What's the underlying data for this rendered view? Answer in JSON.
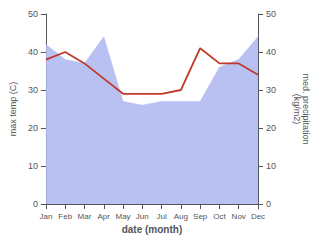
{
  "chart_data": {
    "type": "line",
    "xlabel": "date (month)",
    "ylabel": "max temp (C)",
    "y2label": "med. precipitation\n(kg/m2)",
    "categories": [
      "Jan",
      "Feb",
      "Mar",
      "Apr",
      "May",
      "Jun",
      "Jul",
      "Aug",
      "Sep",
      "Oct",
      "Nov",
      "Dec"
    ],
    "series": [
      {
        "type": "area",
        "axis": "y2",
        "color": "#b0baf0",
        "values": [
          42,
          38,
          37,
          44,
          27,
          26,
          27,
          27,
          27,
          36,
          38,
          44
        ]
      },
      {
        "type": "line",
        "color": "#c0392b",
        "values": [
          38,
          40,
          37,
          33,
          29,
          29,
          29,
          30,
          41,
          37,
          37,
          34
        ]
      }
    ],
    "ylim": [
      0,
      50
    ],
    "yticks": [
      0,
      10,
      20,
      30,
      40,
      50
    ],
    "y2lim": [
      0,
      50
    ],
    "y2ticks": [
      0,
      10,
      20,
      30,
      40,
      50
    ],
    "grid": false
  }
}
